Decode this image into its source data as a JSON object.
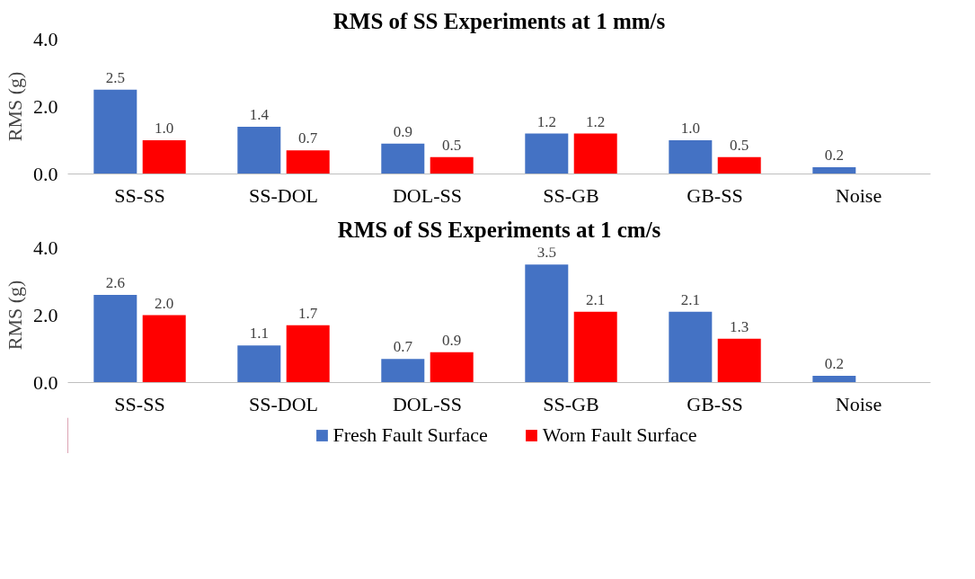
{
  "chart_data": [
    {
      "type": "bar",
      "title": "RMS of SS Experiments at 1 mm/s",
      "ylabel": "RMS (g)",
      "categories": [
        "SS-SS",
        "SS-DOL",
        "DOL-SS",
        "SS-GB",
        "GB-SS",
        "Noise"
      ],
      "series": [
        {
          "color": "#4472c4",
          "values": [
            2.5,
            1.4,
            0.9,
            1.2,
            1.0,
            0.2
          ],
          "value_labels": [
            "2.5",
            "1.4",
            "0.9",
            "1.2",
            "1.0",
            "0.2"
          ]
        },
        {
          "color": "#ff0000",
          "values": [
            1.0,
            0.7,
            0.5,
            1.2,
            0.5,
            null
          ],
          "value_labels": [
            "1.0",
            "0.7",
            "0.5",
            "1.2",
            "0.5",
            null
          ]
        }
      ],
      "ylim": [
        0,
        4
      ],
      "yticks": [
        {
          "value": 0,
          "label": "0.0"
        },
        {
          "value": 2,
          "label": "2.0"
        },
        {
          "value": 4,
          "label": "4.0"
        }
      ],
      "grid": false
    },
    {
      "type": "bar",
      "title": "RMS of SS Experiments at 1 cm/s",
      "ylabel": "RMS (g)",
      "categories": [
        "SS-SS",
        "SS-DOL",
        "DOL-SS",
        "SS-GB",
        "GB-SS",
        "Noise"
      ],
      "series": [
        {
          "name": "Fresh Fault Surface",
          "color": "#4472c4",
          "values": [
            2.6,
            1.1,
            0.7,
            3.5,
            2.1,
            0.2
          ],
          "value_labels": [
            "2.6",
            "1.1",
            "0.7",
            "3.5",
            "2.1",
            "0.2"
          ]
        },
        {
          "name": "Worn Fault Surface",
          "color": "#ff0000",
          "values": [
            2.0,
            1.7,
            0.9,
            2.1,
            1.3,
            null
          ],
          "value_labels": [
            "2.0",
            "1.7",
            "0.9",
            "2.1",
            "1.3",
            null
          ]
        }
      ],
      "ylim": [
        0,
        4
      ],
      "yticks": [
        {
          "value": 0,
          "label": "0.0"
        },
        {
          "value": 2,
          "label": "2.0"
        },
        {
          "value": 4,
          "label": "4.0"
        }
      ],
      "grid": false,
      "legend": "bottom"
    }
  ]
}
